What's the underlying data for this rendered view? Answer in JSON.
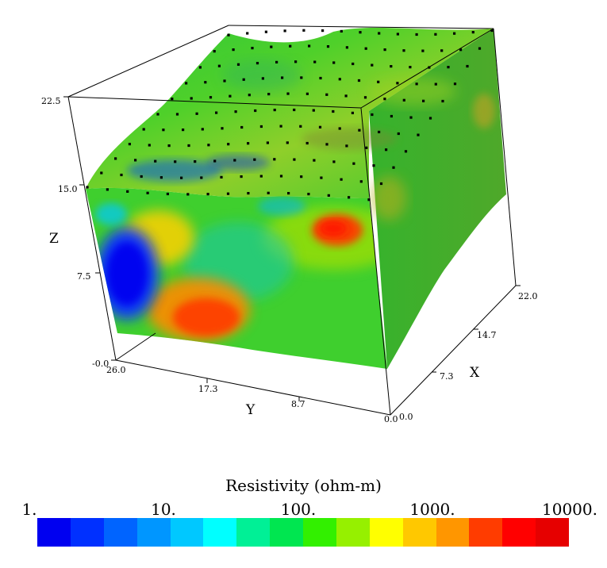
{
  "chart_data": {
    "type": "3d-volume",
    "title": "",
    "axes": {
      "x": {
        "label": "X",
        "ticks": [
          "0.0",
          "7.3",
          "14.7",
          "22.0"
        ],
        "range": [
          0,
          22
        ]
      },
      "y": {
        "label": "Y",
        "ticks": [
          "26.0",
          "17.3",
          "8.7",
          "0.0"
        ],
        "range": [
          0,
          26
        ]
      },
      "z": {
        "label": "Z",
        "ticks": [
          "-0.0",
          "7.5",
          "15.0",
          "22.5"
        ],
        "range": [
          0,
          22.5
        ]
      }
    },
    "colorbar": {
      "title": "Resistivity (ohm-m)",
      "scale": "log",
      "ticks": [
        "1.",
        "10.",
        "100.",
        "1000.",
        "10000."
      ],
      "range": [
        1,
        10000
      ],
      "colors": [
        "#0000f0",
        "#0030ff",
        "#0064ff",
        "#0096ff",
        "#00c8ff",
        "#00ffff",
        "#00f096",
        "#00e650",
        "#32f000",
        "#96f000",
        "#ffff00",
        "#ffc800",
        "#ff9600",
        "#ff3c00",
        "#ff0000",
        "#e60000"
      ]
    },
    "anomalies": [
      {
        "description_color": "#0000f0",
        "resistivity_level": "low"
      },
      {
        "description_color": "#ff3c00",
        "resistivity_level": "high"
      }
    ]
  }
}
